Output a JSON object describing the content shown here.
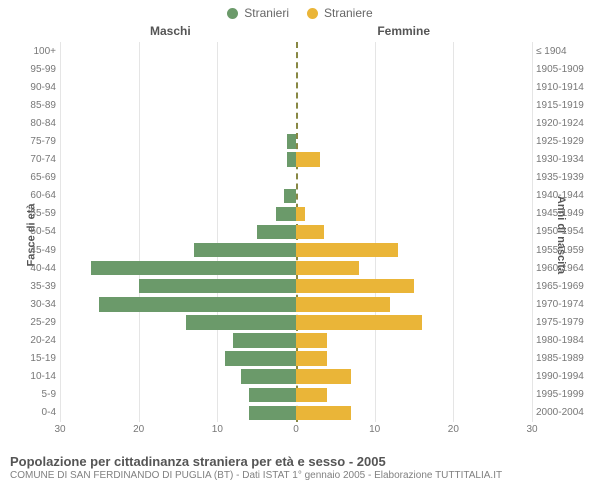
{
  "legend": {
    "male": {
      "label": "Stranieri",
      "color": "#6b9a6a"
    },
    "female": {
      "label": "Straniere",
      "color": "#eab538"
    }
  },
  "columns": {
    "left": "Maschi",
    "right": "Femmine"
  },
  "axes": {
    "leftTitle": "Fasce di età",
    "rightTitle": "Anni di nascita",
    "xlim": 30,
    "xticks": [
      30,
      20,
      10,
      0,
      10,
      20,
      30
    ]
  },
  "grid_color": "#e5e5e5",
  "centerline_color": "#888844",
  "background": "#ffffff",
  "rows": [
    {
      "age": "100+",
      "birth": "≤ 1904",
      "m": 0,
      "f": 0
    },
    {
      "age": "95-99",
      "birth": "1905-1909",
      "m": 0,
      "f": 0
    },
    {
      "age": "90-94",
      "birth": "1910-1914",
      "m": 0,
      "f": 0
    },
    {
      "age": "85-89",
      "birth": "1915-1919",
      "m": 0,
      "f": 0
    },
    {
      "age": "80-84",
      "birth": "1920-1924",
      "m": 0,
      "f": 0
    },
    {
      "age": "75-79",
      "birth": "1925-1929",
      "m": 1.2,
      "f": 0
    },
    {
      "age": "70-74",
      "birth": "1930-1934",
      "m": 1.2,
      "f": 3
    },
    {
      "age": "65-69",
      "birth": "1935-1939",
      "m": 0,
      "f": 0
    },
    {
      "age": "60-64",
      "birth": "1940-1944",
      "m": 1.5,
      "f": 0
    },
    {
      "age": "55-59",
      "birth": "1945-1949",
      "m": 2.5,
      "f": 1.2
    },
    {
      "age": "50-54",
      "birth": "1950-1954",
      "m": 5,
      "f": 3.5
    },
    {
      "age": "45-49",
      "birth": "1955-1959",
      "m": 13,
      "f": 13
    },
    {
      "age": "40-44",
      "birth": "1960-1964",
      "m": 26,
      "f": 8
    },
    {
      "age": "35-39",
      "birth": "1965-1969",
      "m": 20,
      "f": 15
    },
    {
      "age": "30-34",
      "birth": "1970-1974",
      "m": 25,
      "f": 12
    },
    {
      "age": "25-29",
      "birth": "1975-1979",
      "m": 14,
      "f": 16
    },
    {
      "age": "20-24",
      "birth": "1980-1984",
      "m": 8,
      "f": 4
    },
    {
      "age": "15-19",
      "birth": "1985-1989",
      "m": 9,
      "f": 4
    },
    {
      "age": "10-14",
      "birth": "1990-1994",
      "m": 7,
      "f": 7
    },
    {
      "age": "5-9",
      "birth": "1995-1999",
      "m": 6,
      "f": 4
    },
    {
      "age": "0-4",
      "birth": "2000-2004",
      "m": 6,
      "f": 7
    }
  ],
  "footer": {
    "title": "Popolazione per cittadinanza straniera per età e sesso - 2005",
    "subtitle": "COMUNE DI SAN FERDINANDO DI PUGLIA (BT) - Dati ISTAT 1° gennaio 2005 - Elaborazione TUTTITALIA.IT"
  }
}
